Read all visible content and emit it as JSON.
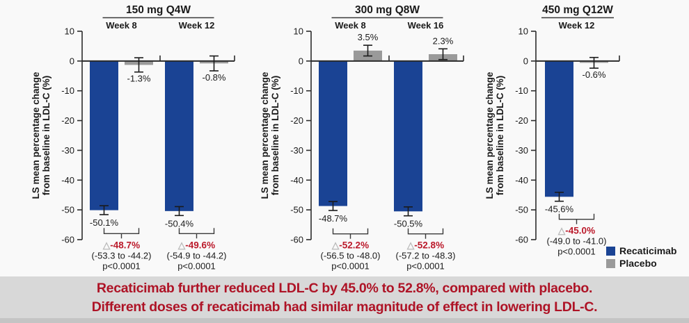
{
  "banner": {
    "line1": "Recaticimab further reduced LDL-C by 45.0% to 52.8%, compared with placebo.",
    "line2": "Different doses of recaticimab had similar magnitude of effect in lowering LDL-C.",
    "text_color": "#ae1326",
    "bg_color": "#d8d8d8"
  },
  "legend": {
    "items": [
      {
        "label": "Recaticimab",
        "color": "#1a4394"
      },
      {
        "label": "Placebo",
        "color": "#9a9a9a"
      }
    ]
  },
  "chart_data": {
    "type": "bar",
    "ylabel_line1": "LS mean percentage change",
    "ylabel_line2": "from baseline in LDL-C (%)",
    "ylim": [
      -60,
      10
    ],
    "yticks": [
      10,
      0,
      -10,
      -20,
      -30,
      -40,
      -50,
      -60
    ],
    "series": [
      "Recaticimab",
      "Placebo"
    ],
    "colors": {
      "recaticimab": "#1a4394",
      "placebo": "#9a9a9a",
      "axis": "#2b2b2b",
      "diff_red": "#bb1a2b",
      "triangle": "#b9b9b9",
      "text": "#1a1a1a"
    },
    "panels": [
      {
        "title": "150 mg Q4W",
        "groups": [
          {
            "label": "Week 8",
            "recaticimab": {
              "value": -50.1,
              "err": 1.5,
              "label": "-50.1%"
            },
            "placebo": {
              "value": -1.3,
              "err": 2.4,
              "label": "-1.3%"
            },
            "difference": {
              "value": "-48.7%",
              "ci": "(-53.3 to -44.2)",
              "p": "p<0.0001"
            }
          },
          {
            "label": "Week 12",
            "recaticimab": {
              "value": -50.4,
              "err": 1.5,
              "label": "-50.4%"
            },
            "placebo": {
              "value": -0.8,
              "err": 2.5,
              "label": "-0.8%"
            },
            "difference": {
              "value": "-49.6%",
              "ci": "(-54.9 to -44.2)",
              "p": "p<0.0001"
            }
          }
        ]
      },
      {
        "title": "300 mg Q8W",
        "groups": [
          {
            "label": "Week 8",
            "recaticimab": {
              "value": -48.7,
              "err": 1.5,
              "label": "-48.7%"
            },
            "placebo": {
              "value": 3.5,
              "err": 1.8,
              "label": "3.5%"
            },
            "difference": {
              "value": "-52.2%",
              "ci": "(-56.5 to -48.0)",
              "p": "p<0.0001"
            }
          },
          {
            "label": "Week 16",
            "recaticimab": {
              "value": -50.5,
              "err": 1.5,
              "label": "-50.5%"
            },
            "placebo": {
              "value": 2.3,
              "err": 1.8,
              "label": "2.3%"
            },
            "difference": {
              "value": "-52.8%",
              "ci": "(-57.2 to -48.3)",
              "p": "p<0.0001"
            }
          }
        ]
      },
      {
        "title": "450 mg Q12W",
        "groups": [
          {
            "label": "Week 12",
            "recaticimab": {
              "value": -45.6,
              "err": 1.5,
              "label": "-45.6%"
            },
            "placebo": {
              "value": -0.6,
              "err": 1.8,
              "label": "-0.6%"
            },
            "difference": {
              "value": "-45.0%",
              "ci": "(-49.0 to -41.0)",
              "p": "p<0.0001"
            }
          }
        ]
      }
    ]
  }
}
